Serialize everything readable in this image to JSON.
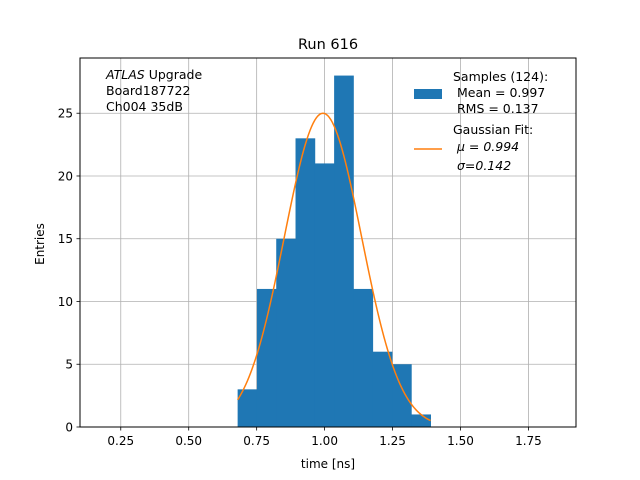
{
  "chart_data": {
    "type": "bar",
    "title": "Run 616",
    "xlabel": "time [ns]",
    "ylabel": "Entries",
    "xlim": [
      0.1,
      1.925
    ],
    "ylim": [
      0,
      29.4
    ],
    "grid": true,
    "xticks": [
      {
        "value": 0.25,
        "label": "0.25"
      },
      {
        "value": 0.5,
        "label": "0.50"
      },
      {
        "value": 0.75,
        "label": "0.75"
      },
      {
        "value": 1.0,
        "label": "1.00"
      },
      {
        "value": 1.25,
        "label": "1.25"
      },
      {
        "value": 1.5,
        "label": "1.50"
      },
      {
        "value": 1.75,
        "label": "1.75"
      }
    ],
    "yticks": [
      {
        "value": 0,
        "label": "0"
      },
      {
        "value": 5,
        "label": "5"
      },
      {
        "value": 10,
        "label": "10"
      },
      {
        "value": 15,
        "label": "15"
      },
      {
        "value": 20,
        "label": "20"
      },
      {
        "value": 25,
        "label": "25"
      }
    ],
    "annotation_lines": [
      {
        "italic": "ATLAS",
        "rest": " Upgrade"
      },
      {
        "italic": "",
        "rest": " Board187722"
      },
      {
        "italic": "",
        "rest": " Ch004 35dB"
      }
    ],
    "histogram": {
      "name": "Samples (124):",
      "stats": [
        " Mean = 0.997",
        " RMS = 0.137"
      ],
      "color": "#1f77b4",
      "bin_edges": [
        0.68,
        0.751,
        0.822,
        0.893,
        0.964,
        1.035,
        1.106,
        1.177,
        1.248,
        1.319,
        1.39
      ],
      "counts": [
        3,
        11,
        15,
        23,
        21,
        28,
        11,
        6,
        5,
        1
      ]
    },
    "fit": {
      "name": "Gaussian Fit:",
      "params": [
        " μ = 0.994",
        " σ=0.142"
      ],
      "color": "#ff7f0e",
      "amplitude": 25.0,
      "mu": 0.994,
      "sigma": 0.142,
      "x_range": [
        0.68,
        1.39
      ]
    },
    "legend_position": "upper-right"
  }
}
